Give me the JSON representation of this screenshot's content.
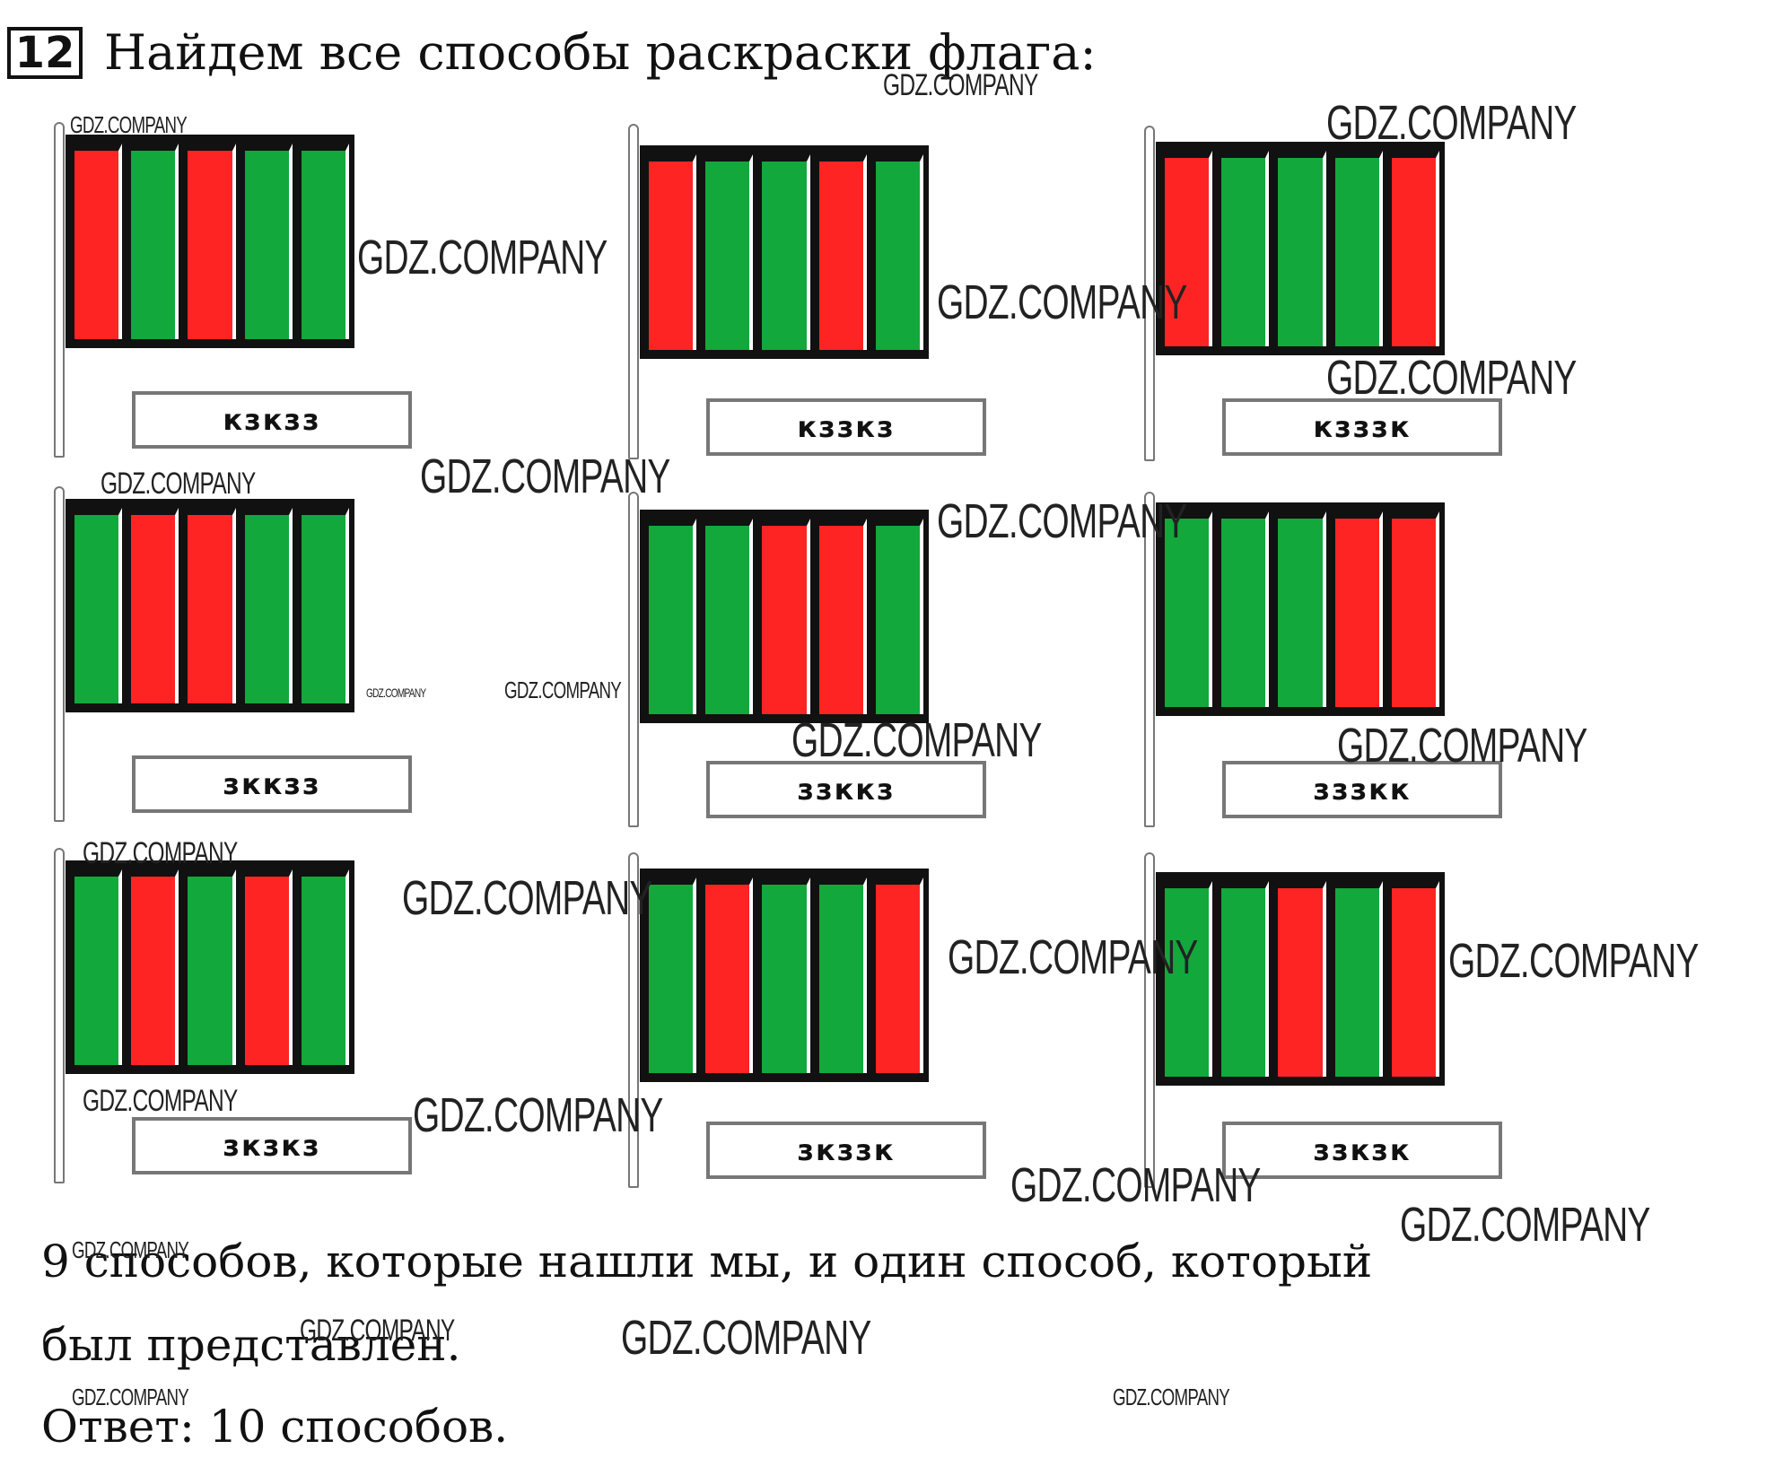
{
  "task": {
    "number": "12",
    "title": "Найдем все способы раскраски флага:"
  },
  "colors": {
    "red": "#ff2424",
    "green": "#12a83c"
  },
  "flags": [
    {
      "label": "кзкзз",
      "stripes": [
        "red",
        "green",
        "red",
        "green",
        "green"
      ]
    },
    {
      "label": "кззкз",
      "stripes": [
        "red",
        "green",
        "green",
        "red",
        "green"
      ]
    },
    {
      "label": "кзззк",
      "stripes": [
        "red",
        "green",
        "green",
        "green",
        "red"
      ]
    },
    {
      "label": "зккзз",
      "stripes": [
        "green",
        "red",
        "red",
        "green",
        "green"
      ]
    },
    {
      "label": "ззккз",
      "stripes": [
        "green",
        "green",
        "red",
        "red",
        "green"
      ]
    },
    {
      "label": "зззкк",
      "stripes": [
        "green",
        "green",
        "green",
        "red",
        "red"
      ]
    },
    {
      "label": "зкзкз",
      "stripes": [
        "green",
        "red",
        "green",
        "red",
        "green"
      ]
    },
    {
      "label": "зкззк",
      "stripes": [
        "green",
        "red",
        "green",
        "green",
        "red"
      ]
    },
    {
      "label": "ззкзк",
      "stripes": [
        "green",
        "green",
        "red",
        "green",
        "red"
      ]
    }
  ],
  "answer": {
    "line1": "9 способов, которые нашли мы, и один способ, который",
    "line2": "был представлен.",
    "line3": "Ответ: 10 способов."
  },
  "watermark": {
    "text": "GDZ.COMPANY"
  }
}
